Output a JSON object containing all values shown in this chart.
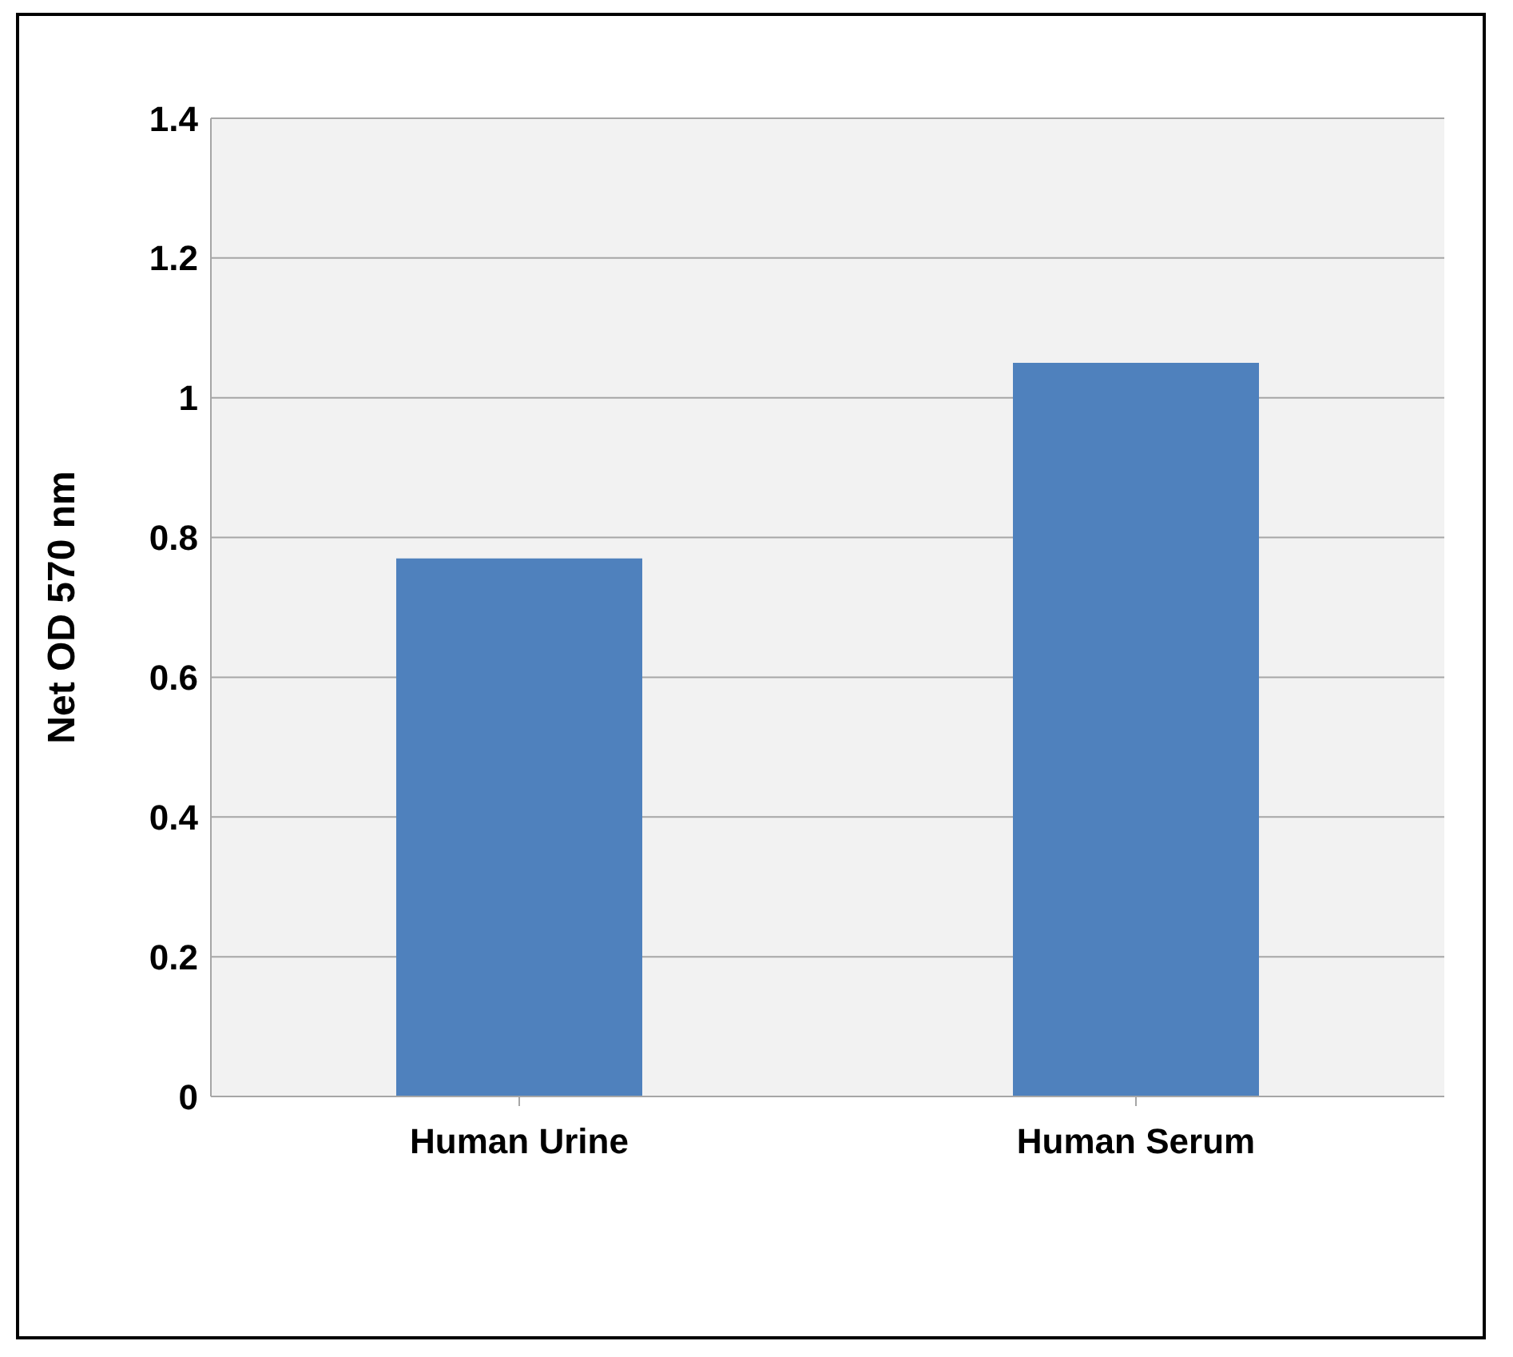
{
  "chart_data": {
    "type": "bar",
    "ylabel": "Net OD 570 nm",
    "categories": [
      "Human Urine",
      "Human Serum"
    ],
    "values": [
      0.77,
      1.05
    ],
    "color": "#4f81bd",
    "ylim": [
      0,
      1.4
    ],
    "yticks": [
      0,
      0.2,
      0.4,
      0.6,
      0.8,
      1,
      1.2,
      1.4
    ],
    "grid": "y"
  }
}
